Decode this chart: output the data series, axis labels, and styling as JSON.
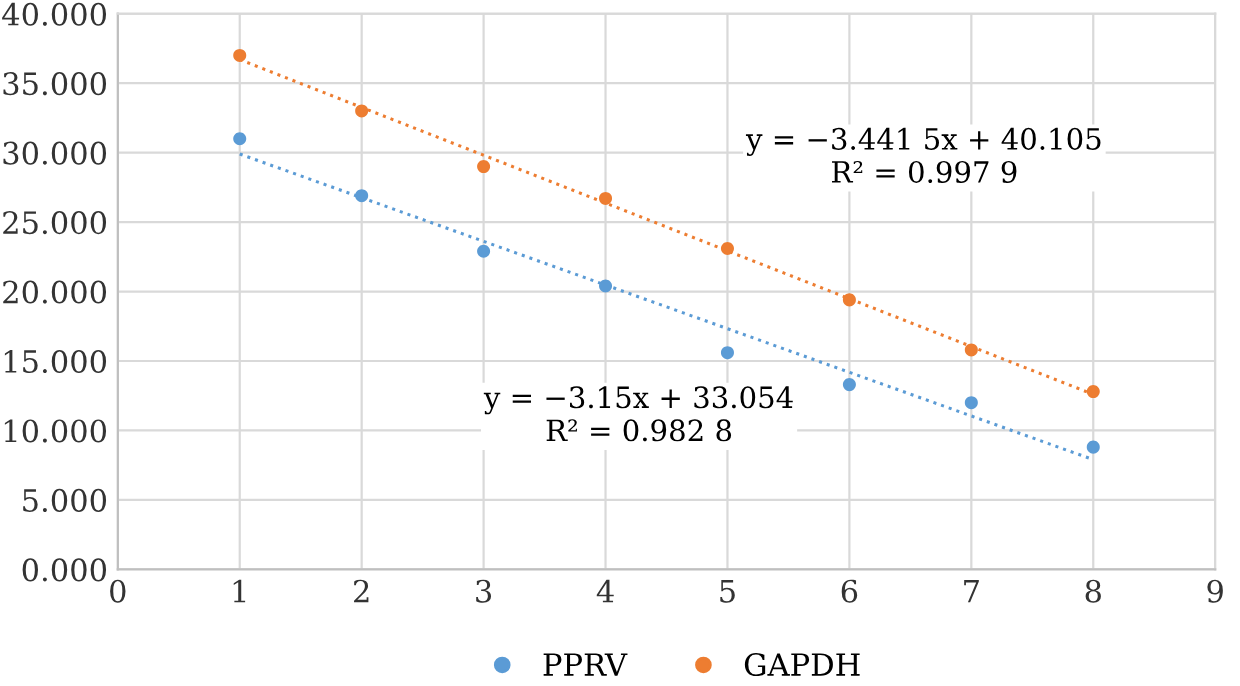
{
  "chart_data": {
    "type": "scatter",
    "grid": true,
    "legend": "bottom",
    "xlim": [
      0,
      9
    ],
    "xticks": [
      0,
      1,
      2,
      3,
      4,
      5,
      6,
      7,
      8,
      9
    ],
    "ylim": [
      0,
      40
    ],
    "yticks": [
      {
        "value": 0,
        "label": "0.000"
      },
      {
        "value": 5,
        "label": "5.000"
      },
      {
        "value": 10,
        "label": "10.000"
      },
      {
        "value": 15,
        "label": "15.000"
      },
      {
        "value": 20,
        "label": "20.000"
      },
      {
        "value": 25,
        "label": "25.000"
      },
      {
        "value": 30,
        "label": "30.000"
      },
      {
        "value": 35,
        "label": "35.000"
      },
      {
        "value": 40,
        "label": "40.000"
      }
    ],
    "series": [
      {
        "name": "PPRV",
        "marker": "circle",
        "color": "#5b9bd5",
        "x": [
          1,
          2,
          3,
          4,
          5,
          6,
          7,
          8
        ],
        "values": [
          31.0,
          26.9,
          22.9,
          20.4,
          15.6,
          13.3,
          12.0,
          8.8
        ]
      },
      {
        "name": "GAPDH",
        "marker": "circle",
        "color": "#ed7d31",
        "x": [
          1,
          2,
          3,
          4,
          5,
          6,
          7,
          8
        ],
        "values": [
          37.0,
          33.0,
          29.0,
          26.7,
          23.1,
          19.4,
          15.8,
          12.8
        ]
      },
      {
        "type": "line",
        "marker": "none",
        "line_style": "dotted",
        "color": "#5b9bd5",
        "x": [
          1,
          8
        ],
        "values": [
          29.9,
          7.9
        ]
      },
      {
        "type": "line",
        "marker": "none",
        "line_style": "dotted",
        "color": "#ed7d31",
        "x": [
          1,
          8
        ],
        "values": [
          36.7,
          12.6
        ]
      }
    ],
    "annotations": [
      "y = −3.441 5x + 40.105\nR² = 0.997 9",
      "y = −3.15x + 33.054\nR² = 0.982 8"
    ]
  }
}
